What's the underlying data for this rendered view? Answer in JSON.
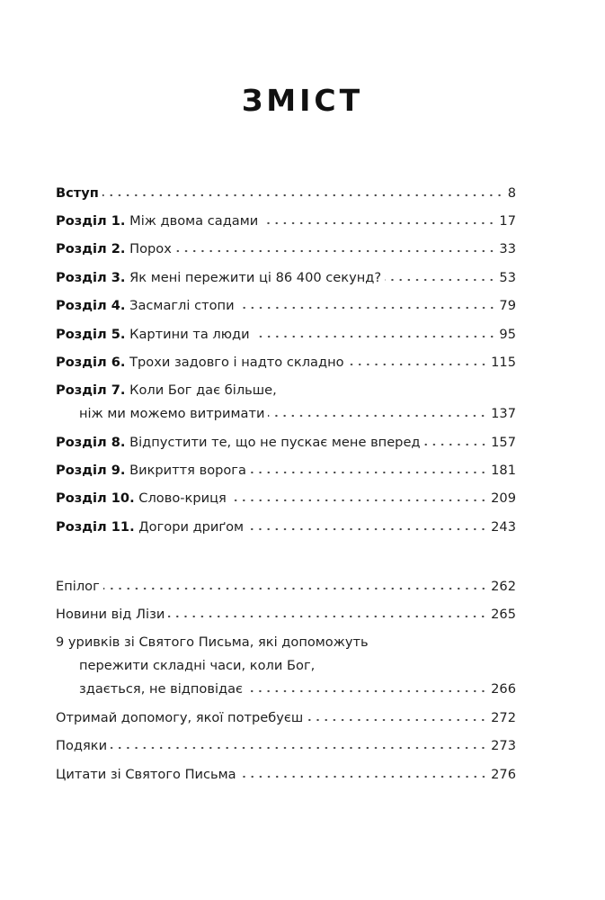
{
  "title": "ЗМІСТ",
  "chapters": [
    {
      "prefix": "Вступ",
      "lines": [
        ""
      ],
      "page": "8"
    },
    {
      "prefix": "Розділ 1.",
      "lines": [
        "Між двома садами"
      ],
      "page": "17"
    },
    {
      "prefix": "Розділ 2.",
      "lines": [
        "Порох"
      ],
      "page": "33"
    },
    {
      "prefix": "Розділ 3.",
      "lines": [
        "Як мені пережити ці 86 400 секунд?"
      ],
      "page": "53"
    },
    {
      "prefix": "Розділ 4.",
      "lines": [
        "Засмаглі стопи"
      ],
      "page": "79"
    },
    {
      "prefix": "Розділ 5.",
      "lines": [
        "Картини та люди"
      ],
      "page": "95"
    },
    {
      "prefix": "Розділ 6.",
      "lines": [
        "Трохи задовго і надто складно"
      ],
      "page": "115"
    },
    {
      "prefix": "Розділ 7.",
      "lines": [
        "Коли Бог дає більше,",
        "ніж ми можемо витримати"
      ],
      "page": "137"
    },
    {
      "prefix": "Розділ 8.",
      "lines": [
        "Відпустити те, що не пускає мене вперед"
      ],
      "page": "157"
    },
    {
      "prefix": "Розділ 9.",
      "lines": [
        "Викриття ворога"
      ],
      "page": "181"
    },
    {
      "prefix": "Розділ 10.",
      "lines": [
        "Слово-криця"
      ],
      "page": "209"
    },
    {
      "prefix": "Розділ 11.",
      "lines": [
        "Догори дриґом"
      ],
      "page": "243"
    }
  ],
  "appendix": [
    {
      "prefix": "",
      "lines": [
        "Епілог"
      ],
      "page": "262"
    },
    {
      "prefix": "",
      "lines": [
        "Новини від Лізи"
      ],
      "page": "265"
    },
    {
      "prefix": "",
      "lines": [
        "9 уривків зі Святого Письма, які допоможуть",
        "пережити складні часи, коли Бог,",
        "здається, не відповідає"
      ],
      "page": "266"
    },
    {
      "prefix": "",
      "lines": [
        "Отримай допомогу, якої потребуєш"
      ],
      "page": "272"
    },
    {
      "prefix": "",
      "lines": [
        "Подяки"
      ],
      "page": "273"
    },
    {
      "prefix": "",
      "lines": [
        "Цитати зі Святого Письма"
      ],
      "page": "276"
    }
  ]
}
